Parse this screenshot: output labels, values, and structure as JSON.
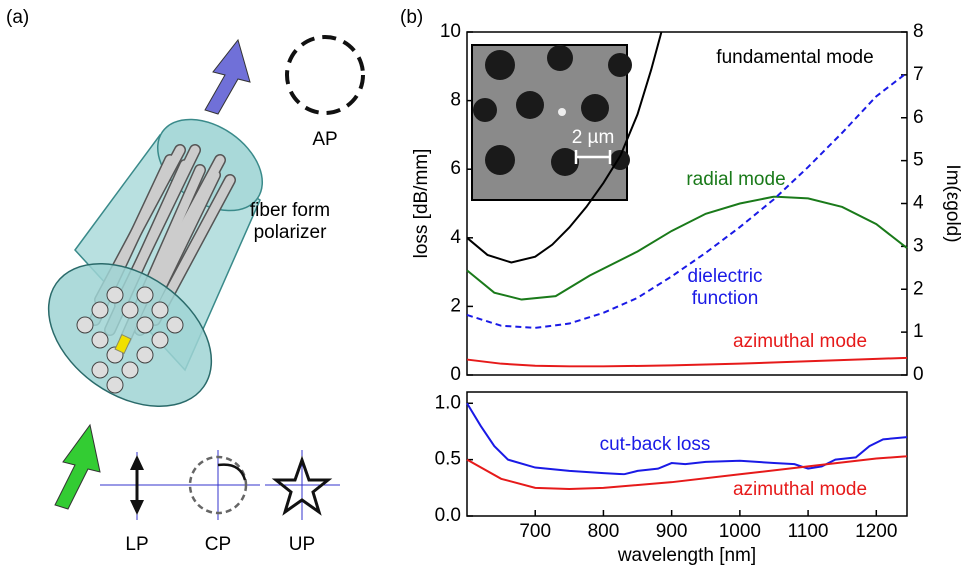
{
  "panel_a": {
    "label": "(a)",
    "ap": "AP",
    "polarizer": "fiber form polarizer",
    "lp": "LP",
    "cp": "CP",
    "up": "UP"
  },
  "panel_b": {
    "label": "(b)",
    "inset_scale": "2 µm"
  },
  "chart_data": [
    {
      "type": "line",
      "ylabel": "loss [dB/mm]",
      "y2label": "Im(εgold)",
      "xlim": [
        600,
        1245
      ],
      "ylim": [
        0,
        10
      ],
      "yticks": [
        0,
        2,
        4,
        6,
        8,
        10
      ],
      "y2lim": [
        0,
        8
      ],
      "y2ticks": [
        0,
        1,
        2,
        3,
        4,
        5,
        6,
        7,
        8
      ],
      "series": [
        {
          "name": "fundamental mode",
          "color": "#000000",
          "x": [
            600,
            630,
            665,
            700,
            725,
            750,
            775,
            800,
            825,
            850,
            870,
            885
          ],
          "values": [
            4.0,
            3.5,
            3.28,
            3.45,
            3.8,
            4.3,
            4.9,
            5.6,
            6.4,
            7.6,
            8.9,
            10
          ]
        },
        {
          "name": "radial mode",
          "color": "#1a7a1a",
          "x": [
            600,
            640,
            680,
            730,
            780,
            850,
            900,
            950,
            1000,
            1050,
            1100,
            1150,
            1200,
            1245
          ],
          "values": [
            3.05,
            2.4,
            2.2,
            2.3,
            2.9,
            3.6,
            4.2,
            4.7,
            5.0,
            5.2,
            5.15,
            4.9,
            4.4,
            3.7
          ]
        },
        {
          "name": "dielectric function",
          "color": "#1a1ae6",
          "axis": "y2",
          "linestyle": "dashed",
          "x": [
            600,
            650,
            700,
            750,
            800,
            850,
            900,
            950,
            1000,
            1050,
            1100,
            1150,
            1200,
            1245
          ],
          "values": [
            1.4,
            1.15,
            1.1,
            1.2,
            1.45,
            1.8,
            2.3,
            2.85,
            3.45,
            4.1,
            4.85,
            5.65,
            6.5,
            7.05
          ]
        },
        {
          "name": "azimuthal mode",
          "color": "#e61a1a",
          "x": [
            600,
            650,
            700,
            750,
            800,
            900,
            1000,
            1100,
            1200,
            1245
          ],
          "values": [
            0.45,
            0.33,
            0.27,
            0.25,
            0.25,
            0.28,
            0.33,
            0.4,
            0.47,
            0.5
          ]
        }
      ]
    },
    {
      "type": "line",
      "xlabel": "wavelength [nm]",
      "xlim": [
        600,
        1245
      ],
      "xticks": [
        700,
        800,
        900,
        1000,
        1100,
        1200
      ],
      "ylim": [
        0,
        1.1
      ],
      "yticks": [
        {
          "value": 0,
          "label": "0.0"
        },
        {
          "value": 0.5,
          "label": "0.5"
        },
        {
          "value": 1,
          "label": "1.0"
        }
      ],
      "series": [
        {
          "name": "cut-back loss",
          "color": "#1a1ae6",
          "x": [
            600,
            620,
            640,
            660,
            700,
            750,
            800,
            830,
            850,
            880,
            900,
            920,
            950,
            1000,
            1050,
            1080,
            1100,
            1120,
            1140,
            1170,
            1190,
            1210,
            1245
          ],
          "values": [
            1.0,
            0.8,
            0.62,
            0.5,
            0.43,
            0.4,
            0.38,
            0.37,
            0.4,
            0.42,
            0.47,
            0.46,
            0.48,
            0.49,
            0.47,
            0.46,
            0.42,
            0.44,
            0.5,
            0.52,
            0.62,
            0.68,
            0.7
          ]
        },
        {
          "name": "azimuthal mode",
          "color": "#e61a1a",
          "x": [
            600,
            650,
            700,
            750,
            800,
            900,
            1000,
            1100,
            1200,
            1245
          ],
          "values": [
            0.5,
            0.33,
            0.25,
            0.24,
            0.25,
            0.3,
            0.37,
            0.44,
            0.51,
            0.53
          ]
        }
      ]
    }
  ]
}
